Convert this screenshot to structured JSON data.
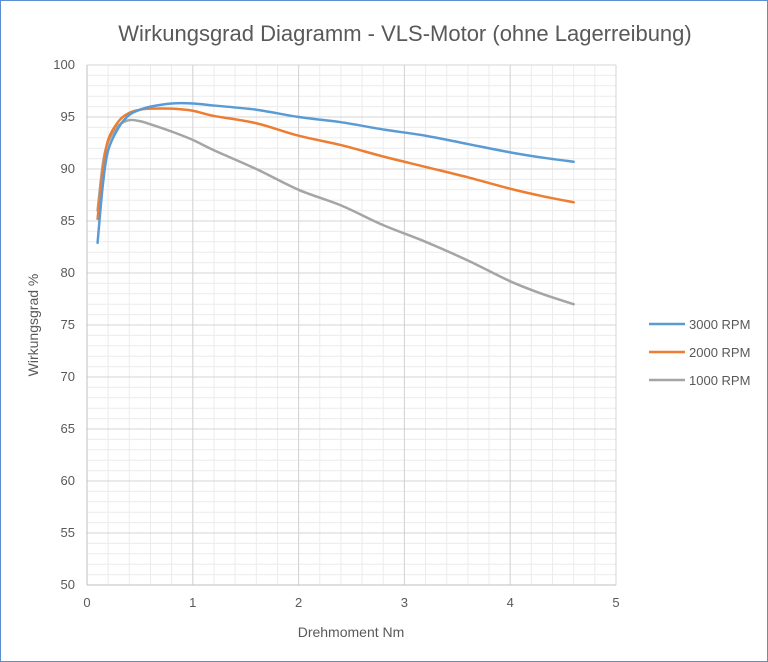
{
  "chart_data": {
    "type": "line",
    "title": "Wirkungsgrad Diagramm - VLS-Motor (ohne Lagerreibung)",
    "xlabel": "Drehmoment Nm",
    "ylabel": "Wirkungsgrad %",
    "xlim": [
      0,
      5
    ],
    "ylim": [
      50,
      100
    ],
    "x_ticks": [
      0,
      1,
      2,
      3,
      4,
      5
    ],
    "y_ticks": [
      50,
      55,
      60,
      65,
      70,
      75,
      80,
      85,
      90,
      95,
      100
    ],
    "x_ticks_text": [
      "0",
      "1",
      "2",
      "3",
      "4",
      "5"
    ],
    "y_ticks_text": [
      "50",
      "55",
      "60",
      "65",
      "70",
      "75",
      "80",
      "85",
      "90",
      "95",
      "100"
    ],
    "grid": true,
    "legend_position": "right",
    "series": [
      {
        "name": "3000 RPM",
        "color": "#5b9bd5",
        "points": [
          [
            0.1,
            82.9
          ],
          [
            0.15,
            88.5
          ],
          [
            0.2,
            91.8
          ],
          [
            0.3,
            94.0
          ],
          [
            0.4,
            95.2
          ],
          [
            0.5,
            95.7
          ],
          [
            0.6,
            96.0
          ],
          [
            0.8,
            96.3
          ],
          [
            1.0,
            96.3
          ],
          [
            1.2,
            96.1
          ],
          [
            1.6,
            95.7
          ],
          [
            2.0,
            95.0
          ],
          [
            2.4,
            94.5
          ],
          [
            2.8,
            93.8
          ],
          [
            3.2,
            93.2
          ],
          [
            3.6,
            92.4
          ],
          [
            4.0,
            91.6
          ],
          [
            4.3,
            91.1
          ],
          [
            4.6,
            90.7
          ]
        ]
      },
      {
        "name": "2000 RPM",
        "color": "#ed7d31",
        "points": [
          [
            0.1,
            85.2
          ],
          [
            0.15,
            90.0
          ],
          [
            0.2,
            92.8
          ],
          [
            0.3,
            94.6
          ],
          [
            0.4,
            95.4
          ],
          [
            0.5,
            95.7
          ],
          [
            0.6,
            95.8
          ],
          [
            0.8,
            95.8
          ],
          [
            1.0,
            95.6
          ],
          [
            1.2,
            95.1
          ],
          [
            1.6,
            94.4
          ],
          [
            2.0,
            93.2
          ],
          [
            2.4,
            92.3
          ],
          [
            2.8,
            91.2
          ],
          [
            3.2,
            90.2
          ],
          [
            3.6,
            89.2
          ],
          [
            4.0,
            88.1
          ],
          [
            4.3,
            87.4
          ],
          [
            4.6,
            86.8
          ]
        ]
      },
      {
        "name": "1000 RPM",
        "color": "#a5a5a5",
        "points": [
          [
            0.1,
            86.0
          ],
          [
            0.15,
            90.5
          ],
          [
            0.2,
            92.6
          ],
          [
            0.3,
            94.2
          ],
          [
            0.4,
            94.7
          ],
          [
            0.5,
            94.6
          ],
          [
            0.6,
            94.3
          ],
          [
            0.8,
            93.6
          ],
          [
            1.0,
            92.8
          ],
          [
            1.2,
            91.8
          ],
          [
            1.6,
            90.0
          ],
          [
            2.0,
            88.0
          ],
          [
            2.4,
            86.5
          ],
          [
            2.8,
            84.6
          ],
          [
            3.2,
            83.0
          ],
          [
            3.6,
            81.2
          ],
          [
            4.0,
            79.2
          ],
          [
            4.3,
            78.0
          ],
          [
            4.6,
            77.0
          ]
        ]
      }
    ]
  }
}
